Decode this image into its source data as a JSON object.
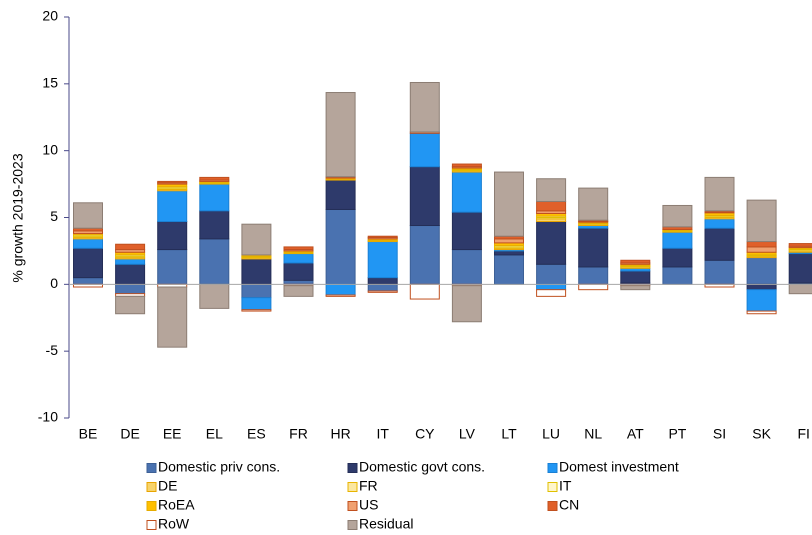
{
  "chart_data": {
    "type": "stacked-bar",
    "y_label": "% growth 2019-2023",
    "categories": [
      "BE",
      "DE",
      "EE",
      "EL",
      "ES",
      "FR",
      "HR",
      "IT",
      "CY",
      "LV",
      "LT",
      "LU",
      "NL",
      "AT",
      "PT",
      "SI",
      "SK",
      "FI"
    ],
    "ylim": [
      -10,
      20
    ],
    "yticks": [
      -10,
      -5,
      0,
      5,
      10,
      15,
      20
    ],
    "series": [
      {
        "name": "Domestic priv cons.",
        "color": "#4a72b0",
        "edgecolor": "#3d6096",
        "values": [
          0.5,
          -0.7,
          2.6,
          3.4,
          -1.0,
          0.3,
          5.6,
          -0.5,
          4.4,
          2.6,
          2.2,
          1.5,
          1.3,
          0.1,
          1.3,
          1.8,
          2.0,
          0.1
        ]
      },
      {
        "name": "Domestic govt cons.",
        "color": "#2e3a6b",
        "edgecolor": "#242e57",
        "values": [
          2.2,
          1.5,
          2.1,
          2.1,
          1.9,
          1.3,
          2.2,
          0.5,
          4.4,
          2.8,
          0.3,
          3.2,
          2.9,
          0.9,
          1.4,
          2.4,
          -0.4,
          2.2
        ]
      },
      {
        "name": "Domest investment",
        "color": "#2196f3",
        "edgecolor": "#1a80d4",
        "values": [
          0.7,
          0.4,
          2.3,
          2.0,
          -0.9,
          0.7,
          -0.8,
          2.7,
          2.5,
          3.0,
          0.1,
          -0.4,
          0.2,
          0.2,
          1.2,
          0.7,
          -1.6,
          0.1
        ]
      },
      {
        "name": "DE",
        "color": "#f7d36b",
        "edgecolor": "#e8a400",
        "values": [
          0.1,
          0.1,
          0.1,
          0.05,
          0.1,
          0.05,
          0.05,
          0.05,
          0,
          0.1,
          0.1,
          0.2,
          0.1,
          0.1,
          0.05,
          0.1,
          0.1,
          0.1
        ]
      },
      {
        "name": "FR",
        "color": "#fbe7a0",
        "edgecolor": "#e8b400",
        "values": [
          0.1,
          0.1,
          0.1,
          0.05,
          0.05,
          0,
          0,
          0.05,
          0,
          0.05,
          0.1,
          0.1,
          0,
          0.05,
          0.05,
          0.1,
          0.05,
          0.1
        ]
      },
      {
        "name": "IT",
        "color": "#fff6cc",
        "edgecolor": "#e0c000",
        "values": [
          0.1,
          0.1,
          0.1,
          0.05,
          0.05,
          0.05,
          0,
          0,
          0,
          0.05,
          0.1,
          0.1,
          0.05,
          0.05,
          0.05,
          0.05,
          0.05,
          0.05
        ]
      },
      {
        "name": "RoEA",
        "color": "#ffc000",
        "edgecolor": "#e6ac00",
        "values": [
          0.1,
          0.2,
          0.2,
          0.05,
          0.1,
          0.1,
          0.1,
          0.1,
          0,
          0.1,
          0.2,
          0.2,
          0.1,
          0.1,
          0.05,
          0.2,
          0.2,
          0.1
        ]
      },
      {
        "name": "US",
        "color": "#f0a070",
        "edgecolor": "#c0501f",
        "values": [
          0.2,
          0.2,
          0.1,
          0.1,
          0,
          0.1,
          0,
          0.1,
          0.1,
          0.1,
          0.3,
          0.2,
          0.05,
          0.1,
          0,
          0.05,
          0.4,
          0.1
        ]
      },
      {
        "name": "CN",
        "color": "#e0602a",
        "edgecolor": "#c0501f",
        "values": [
          0.2,
          0.4,
          0.1,
          0.2,
          0,
          0.2,
          0.1,
          0.1,
          0,
          0.2,
          0.2,
          0.7,
          0.1,
          0.2,
          0.2,
          0.1,
          0.4,
          0.2
        ]
      },
      {
        "name": "RoW",
        "color": "#ffffff",
        "edgecolor": "#c0501f",
        "values": [
          -0.2,
          -0.2,
          -0.2,
          0,
          -0.1,
          -0.1,
          -0.1,
          -0.1,
          -1.1,
          -0.1,
          0,
          -0.5,
          -0.4,
          -0.1,
          0,
          -0.2,
          -0.2,
          0
        ]
      },
      {
        "name": "Residual",
        "color": "#b5a59b",
        "edgecolor": "#8c7d73",
        "values": [
          1.9,
          -1.3,
          -4.5,
          -1.8,
          2.3,
          -0.8,
          6.3,
          0,
          3.7,
          -2.7,
          4.8,
          1.7,
          2.4,
          -0.3,
          1.6,
          2.5,
          3.1,
          -0.7
        ]
      }
    ]
  }
}
